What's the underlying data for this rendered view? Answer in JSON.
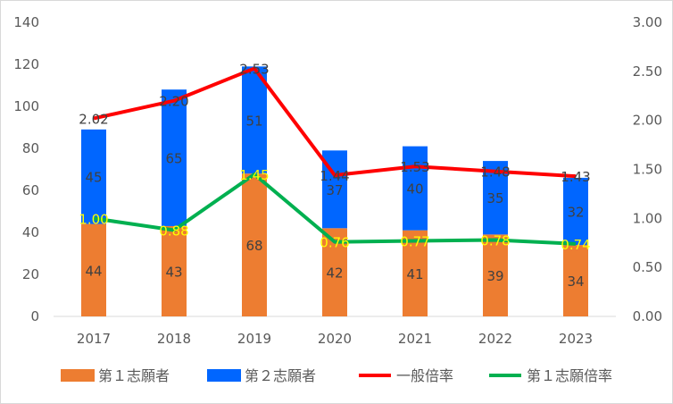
{
  "chart_data": {
    "type": "bar",
    "categories": [
      "2017",
      "2018",
      "2019",
      "2020",
      "2021",
      "2022",
      "2023"
    ],
    "stacked": true,
    "series": [
      {
        "name": "第１志願者",
        "type": "bar",
        "axis": "left",
        "values": [
          44,
          43,
          68,
          42,
          41,
          39,
          34
        ],
        "color": "#ed7d31"
      },
      {
        "name": "第２志願者",
        "type": "bar",
        "axis": "left",
        "values": [
          45,
          65,
          51,
          37,
          40,
          35,
          32
        ],
        "color": "#0066ff"
      },
      {
        "name": "一般倍率",
        "type": "line",
        "axis": "right",
        "values": [
          2.02,
          2.2,
          2.53,
          1.44,
          1.53,
          1.48,
          1.43
        ],
        "labels": [
          "2.02",
          "2.20",
          "2.53",
          "1.44",
          "1.53",
          "1.48",
          "1.43"
        ],
        "color": "#ff0000",
        "label_color": "#404040"
      },
      {
        "name": "第１志願倍率",
        "type": "line",
        "axis": "right",
        "values": [
          1.0,
          0.88,
          1.45,
          0.76,
          0.77,
          0.78,
          0.74
        ],
        "labels": [
          "1.00",
          "0.88",
          "1.45",
          "0.76",
          "0.77",
          "0.78",
          "0.74"
        ],
        "color": "#00b050",
        "label_color": "#ffff00"
      }
    ],
    "y_left": {
      "min": 0,
      "max": 140,
      "ticks": [
        "0",
        "20",
        "40",
        "60",
        "80",
        "100",
        "120",
        "140"
      ]
    },
    "y_right": {
      "min": 0,
      "max": 3.0,
      "ticks": [
        "0.00",
        "0.50",
        "1.00",
        "1.50",
        "2.00",
        "2.50",
        "3.00"
      ]
    },
    "grid": false,
    "legend_position": "bottom"
  }
}
